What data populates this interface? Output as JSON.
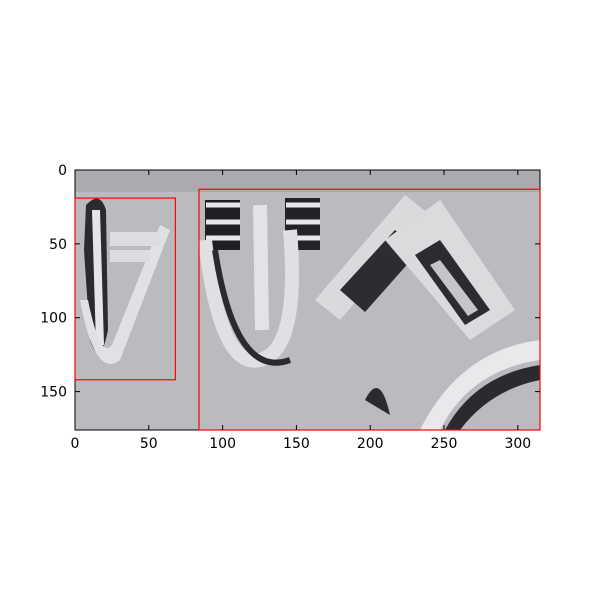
{
  "chart_data": {
    "type": "image",
    "xlim": [
      0,
      315
    ],
    "ylim": [
      176,
      0
    ],
    "xticks": [
      0,
      50,
      100,
      150,
      200,
      250,
      300
    ],
    "yticks": [
      0,
      50,
      100,
      150
    ],
    "box_color": "#ff0000",
    "boxes": [
      {
        "x0": 0,
        "y0": 19,
        "x1": 68,
        "y1": 142
      },
      {
        "x0": 84,
        "y0": 13,
        "x1": 315,
        "y1": 176
      }
    ]
  }
}
